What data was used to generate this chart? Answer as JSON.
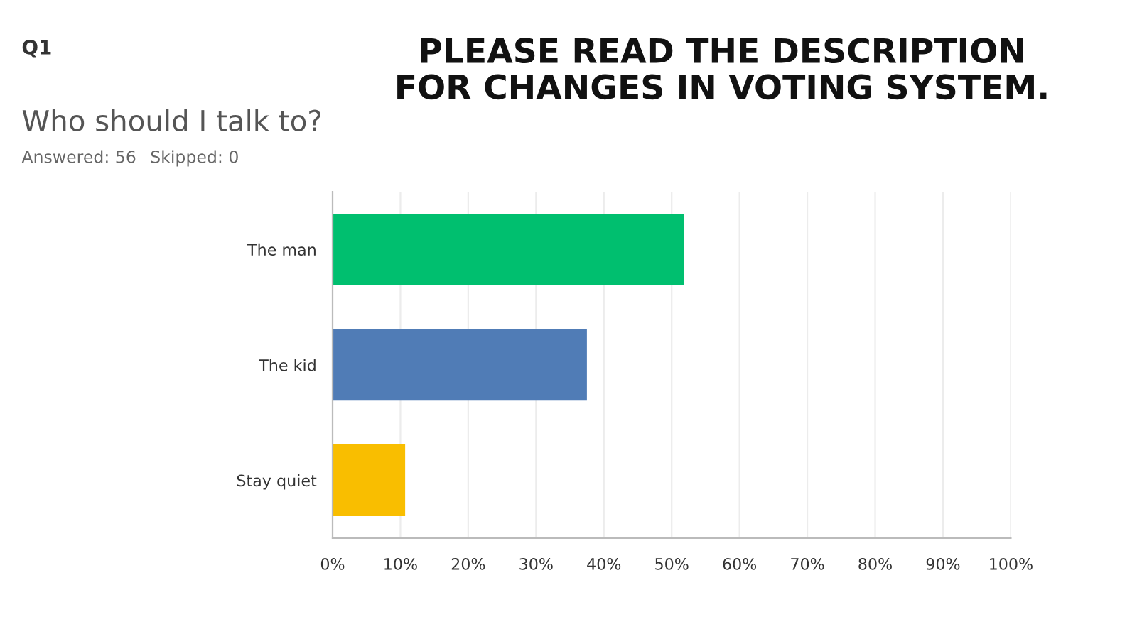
{
  "chart_data": {
    "type": "bar",
    "orientation": "horizontal",
    "title": "Who should I talk to?",
    "categories": [
      "The man",
      "The kid",
      "Stay quiet"
    ],
    "values": [
      51.8,
      37.5,
      10.7
    ],
    "colors": [
      "#00bf6f",
      "#507cb6",
      "#f9be00"
    ],
    "xlim": [
      0,
      100
    ],
    "xticks": [
      {
        "value": 0,
        "label": "0%"
      },
      {
        "value": 10,
        "label": "10%"
      },
      {
        "value": 20,
        "label": "20%"
      },
      {
        "value": 30,
        "label": "30%"
      },
      {
        "value": 40,
        "label": "40%"
      },
      {
        "value": 50,
        "label": "50%"
      },
      {
        "value": 60,
        "label": "60%"
      },
      {
        "value": 70,
        "label": "70%"
      },
      {
        "value": 80,
        "label": "80%"
      },
      {
        "value": 90,
        "label": "90%"
      },
      {
        "value": 100,
        "label": "100%"
      }
    ],
    "grid": "x",
    "legend": false,
    "annotations": [
      "Q1",
      "Answered: 56",
      "Skipped: 0",
      "PLEASE READ THE DESCRIPTION\nFOR CHANGES IN VOTING SYSTEM."
    ]
  }
}
